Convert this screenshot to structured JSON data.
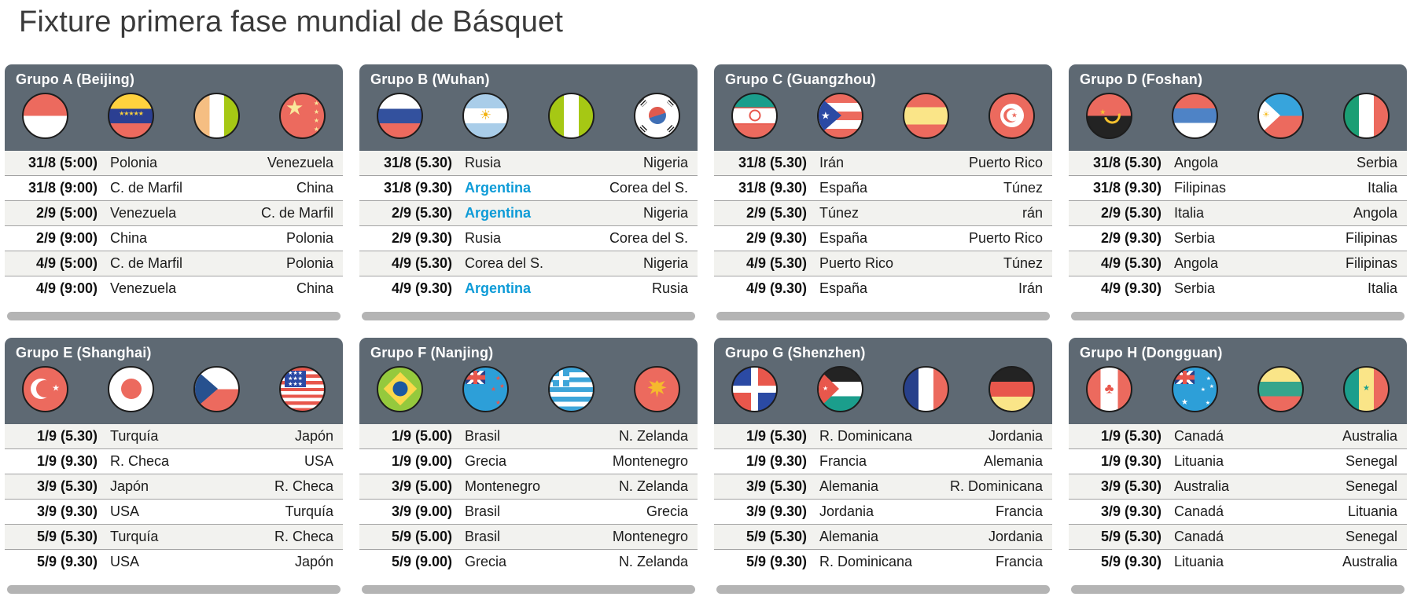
{
  "title": "Fixture primera fase mundial de Básquet",
  "colors": {
    "accent_blue": "#0D9BD7",
    "header_gray": "#5E6973",
    "panel_shadow": "#B4B4B4",
    "flag_red": "#EC6A5E"
  },
  "groups": [
    {
      "name": "Grupo A (Beijing)",
      "flags": [
        {
          "country": "Polonia",
          "key": "polonia"
        },
        {
          "country": "Venezuela",
          "key": "venezuela"
        },
        {
          "country": "C. de Marfil",
          "key": "marfil"
        },
        {
          "country": "China",
          "key": "china"
        }
      ],
      "matches": [
        {
          "date": "31/8 (5:00)",
          "home": "Polonia",
          "away": "Venezuela"
        },
        {
          "date": "31/8 (9:00)",
          "home": "C. de Marfil",
          "away": "China"
        },
        {
          "date": "2/9 (5:00)",
          "home": "Venezuela",
          "away": "C. de Marfil"
        },
        {
          "date": "2/9 (9:00)",
          "home": "China",
          "away": "Polonia"
        },
        {
          "date": "4/9 (5:00)",
          "home": "C. de Marfil",
          "away": "Polonia"
        },
        {
          "date": "4/9 (9:00)",
          "home": "Venezuela",
          "away": "China"
        }
      ]
    },
    {
      "name": "Grupo B (Wuhan)",
      "flags": [
        {
          "country": "Rusia",
          "key": "rusia"
        },
        {
          "country": "Argentina",
          "key": "argentina"
        },
        {
          "country": "Nigeria",
          "key": "nigeria"
        },
        {
          "country": "Corea del Sur",
          "key": "corea"
        }
      ],
      "matches": [
        {
          "date": "31/8 (5.30)",
          "home": "Rusia",
          "away": "Nigeria"
        },
        {
          "date": "31/8 (9.30)",
          "home": "Argentina",
          "away": "Corea del S.",
          "highlight_home": true
        },
        {
          "date": "2/9 (5.30)",
          "home": "Argentina",
          "away": "Nigeria",
          "highlight_home": true
        },
        {
          "date": "2/9 (9.30)",
          "home": "Rusia",
          "away": "Corea del S."
        },
        {
          "date": "4/9 (5.30)",
          "home": "Corea del S.",
          "away": "Nigeria"
        },
        {
          "date": "4/9 (9.30)",
          "home": "Argentina",
          "away": "Rusia",
          "highlight_home": true
        }
      ]
    },
    {
      "name": "Grupo C (Guangzhou)",
      "flags": [
        {
          "country": "Irán",
          "key": "iran"
        },
        {
          "country": "Puerto Rico",
          "key": "puertorico"
        },
        {
          "country": "España",
          "key": "espana"
        },
        {
          "country": "Túnez",
          "key": "tunez"
        }
      ],
      "matches": [
        {
          "date": "31/8 (5.30)",
          "home": "Irán",
          "away": "Puerto Rico"
        },
        {
          "date": "31/8 (9.30)",
          "home": "España",
          "away": "Túnez"
        },
        {
          "date": "2/9 (5.30)",
          "home": "Túnez",
          "away": "rán"
        },
        {
          "date": "2/9 (9.30)",
          "home": "España",
          "away": "Puerto Rico"
        },
        {
          "date": "4/9 (5.30)",
          "home": "Puerto Rico",
          "away": "Túnez"
        },
        {
          "date": "4/9 (9.30)",
          "home": "España",
          "away": "Irán"
        }
      ]
    },
    {
      "name": "Grupo D (Foshan)",
      "flags": [
        {
          "country": "Angola",
          "key": "angola"
        },
        {
          "country": "Serbia",
          "key": "serbia"
        },
        {
          "country": "Filipinas",
          "key": "filipinas"
        },
        {
          "country": "Italia",
          "key": "italia"
        }
      ],
      "matches": [
        {
          "date": "31/8 (5.30)",
          "home": "Angola",
          "away": "Serbia"
        },
        {
          "date": "31/8 (9.30)",
          "home": "Filipinas",
          "away": "Italia"
        },
        {
          "date": "2/9 (5.30)",
          "home": "Italia",
          "away": "Angola"
        },
        {
          "date": "2/9 (9.30)",
          "home": "Serbia",
          "away": "Filipinas"
        },
        {
          "date": "4/9 (5.30)",
          "home": "Angola",
          "away": "Filipinas"
        },
        {
          "date": "4/9 (9.30)",
          "home": "Serbia",
          "away": "Italia"
        }
      ]
    },
    {
      "name": "Grupo E (Shanghai)",
      "flags": [
        {
          "country": "Turquía",
          "key": "turquia"
        },
        {
          "country": "Japón",
          "key": "japon"
        },
        {
          "country": "R. Checa",
          "key": "checa"
        },
        {
          "country": "USA",
          "key": "usa"
        }
      ],
      "matches": [
        {
          "date": "1/9 (5.30)",
          "home": "Turquía",
          "away": "Japón"
        },
        {
          "date": "1/9 (9.30)",
          "home": "R. Checa",
          "away": "USA"
        },
        {
          "date": "3/9 (5.30)",
          "home": "Japón",
          "away": "R. Checa"
        },
        {
          "date": "3/9 (9.30)",
          "home": "USA",
          "away": "Turquía"
        },
        {
          "date": "5/9 (5.30)",
          "home": "Turquía",
          "away": "R. Checa"
        },
        {
          "date": "5/9 (9.30)",
          "home": "USA",
          "away": "Japón"
        }
      ]
    },
    {
      "name": "Grupo F (Nanjing)",
      "flags": [
        {
          "country": "Brasil",
          "key": "brasil"
        },
        {
          "country": "N. Zelanda",
          "key": "nzelanda"
        },
        {
          "country": "Grecia",
          "key": "grecia"
        },
        {
          "country": "Montenegro",
          "key": "montenegro"
        }
      ],
      "matches": [
        {
          "date": "1/9 (5.00)",
          "home": "Brasil",
          "away": "N. Zelanda"
        },
        {
          "date": "1/9 (9.00)",
          "home": "Grecia",
          "away": "Montenegro"
        },
        {
          "date": "3/9 (5.00)",
          "home": "Montenegro",
          "away": "N. Zelanda"
        },
        {
          "date": "3/9 (9.00)",
          "home": "Brasil",
          "away": "Grecia"
        },
        {
          "date": "5/9 (5.00)",
          "home": "Brasil",
          "away": "Montenegro"
        },
        {
          "date": "5/9 (9.00)",
          "home": "Grecia",
          "away": "N. Zelanda"
        }
      ]
    },
    {
      "name": "Grupo G (Shenzhen)",
      "flags": [
        {
          "country": "R. Dominicana",
          "key": "dominicana"
        },
        {
          "country": "Jordania",
          "key": "jordania"
        },
        {
          "country": "Francia",
          "key": "francia"
        },
        {
          "country": "Alemania",
          "key": "alemania"
        }
      ],
      "matches": [
        {
          "date": "1/9 (5.30)",
          "home": "R. Dominicana",
          "away": "Jordania"
        },
        {
          "date": "1/9 (9.30)",
          "home": "Francia",
          "away": "Alemania"
        },
        {
          "date": "3/9 (5.30)",
          "home": "Alemania",
          "away": "R. Dominicana"
        },
        {
          "date": "3/9 (9.30)",
          "home": "Jordania",
          "away": "Francia"
        },
        {
          "date": "5/9 (5.30)",
          "home": "Alemania",
          "away": "Jordania"
        },
        {
          "date": "5/9 (9.30)",
          "home": "R. Dominicana",
          "away": "Francia"
        }
      ]
    },
    {
      "name": "Grupo H (Dongguan)",
      "flags": [
        {
          "country": "Canadá",
          "key": "canada"
        },
        {
          "country": "Australia",
          "key": "australia"
        },
        {
          "country": "Lituania",
          "key": "lituania"
        },
        {
          "country": "Senegal",
          "key": "senegal"
        }
      ],
      "matches": [
        {
          "date": "1/9 (5.30)",
          "home": "Canadá",
          "away": "Australia"
        },
        {
          "date": "1/9 (9.30)",
          "home": "Lituania",
          "away": "Senegal"
        },
        {
          "date": "3/9 (5.30)",
          "home": "Australia",
          "away": "Senegal"
        },
        {
          "date": "3/9 (9.30)",
          "home": "Canadá",
          "away": "Lituania"
        },
        {
          "date": "5/9 (5.30)",
          "home": "Canadá",
          "away": "Senegal"
        },
        {
          "date": "5/9 (9.30)",
          "home": "Lituania",
          "away": "Australia"
        }
      ]
    }
  ]
}
